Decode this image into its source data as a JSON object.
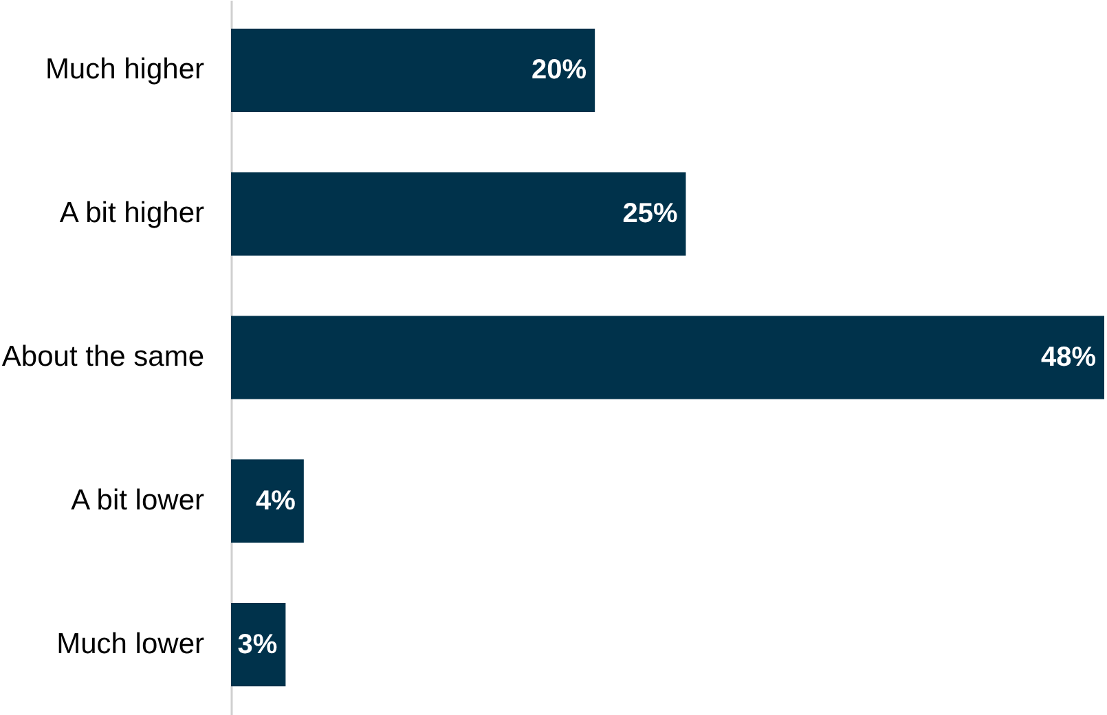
{
  "chart_data": {
    "type": "bar",
    "orientation": "horizontal",
    "categories": [
      "Much higher",
      "A bit higher",
      "About the same",
      "A bit lower",
      "Much lower"
    ],
    "values": [
      20,
      25,
      48,
      4,
      3
    ],
    "value_labels": [
      "20%",
      "25%",
      "48%",
      "4%",
      "3%"
    ],
    "color": "#00324b",
    "xlim": [
      0,
      48
    ],
    "tick_labels": "y"
  }
}
